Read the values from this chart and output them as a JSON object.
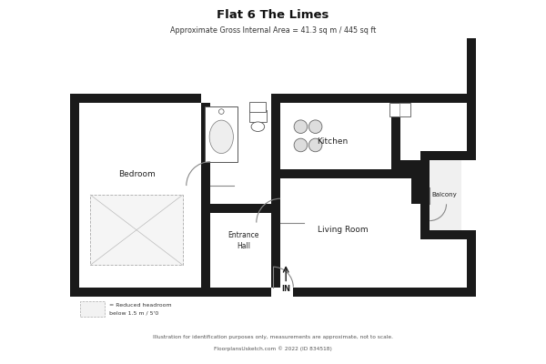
{
  "title": "Flat 6 The Limes",
  "subtitle": "Approximate Gross Internal Area = 41.3 sq m / 445 sq ft",
  "footer1": "Illustration for identification purposes only, measurements are approximate, not to scale.",
  "footer2": "FloorplansUsketch.com © 2022 (ID 834518)",
  "wall_color": "#1a1a1a",
  "bg_color": "#ffffff",
  "legend_text1": "= Reduced headroom",
  "legend_text2": "below 1.5 m / 5'0"
}
